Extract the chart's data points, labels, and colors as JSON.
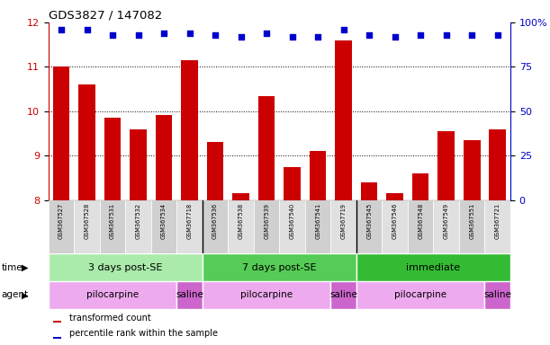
{
  "title": "GDS3827 / 147082",
  "samples": [
    "GSM367527",
    "GSM367528",
    "GSM367531",
    "GSM367532",
    "GSM367534",
    "GSM367718",
    "GSM367536",
    "GSM367538",
    "GSM367539",
    "GSM367540",
    "GSM367541",
    "GSM367719",
    "GSM367545",
    "GSM367546",
    "GSM367548",
    "GSM367549",
    "GSM367551",
    "GSM367721"
  ],
  "transformed_count": [
    11.0,
    10.6,
    9.85,
    9.6,
    9.92,
    11.15,
    9.3,
    8.15,
    10.35,
    8.75,
    9.1,
    11.6,
    8.4,
    8.15,
    8.6,
    9.55,
    9.35,
    9.6
  ],
  "percentile_rank": [
    96,
    96,
    93,
    93,
    94,
    94,
    93,
    92,
    94,
    92,
    92,
    96,
    93,
    92,
    93,
    93,
    93,
    93
  ],
  "ylim_left": [
    8,
    12
  ],
  "ylim_right": [
    0,
    100
  ],
  "yticks_left": [
    8,
    9,
    10,
    11,
    12
  ],
  "yticks_right": [
    0,
    25,
    50,
    75,
    100
  ],
  "bar_color": "#cc0000",
  "dot_color": "#0000cc",
  "time_groups": [
    {
      "label": "3 days post-SE",
      "start": 0,
      "end": 5,
      "color": "#aaeaaa"
    },
    {
      "label": "7 days post-SE",
      "start": 6,
      "end": 11,
      "color": "#55cc55"
    },
    {
      "label": "immediate",
      "start": 12,
      "end": 17,
      "color": "#33bb33"
    }
  ],
  "agent_groups": [
    {
      "label": "pilocarpine",
      "start": 0,
      "end": 4,
      "color": "#eeaaee"
    },
    {
      "label": "saline",
      "start": 5,
      "end": 5,
      "color": "#cc66cc"
    },
    {
      "label": "pilocarpine",
      "start": 6,
      "end": 10,
      "color": "#eeaaee"
    },
    {
      "label": "saline",
      "start": 11,
      "end": 11,
      "color": "#cc66cc"
    },
    {
      "label": "pilocarpine",
      "start": 12,
      "end": 16,
      "color": "#eeaaee"
    },
    {
      "label": "saline",
      "start": 17,
      "end": 17,
      "color": "#cc66cc"
    }
  ],
  "legend_items": [
    {
      "label": "transformed count",
      "color": "#cc0000"
    },
    {
      "label": "percentile rank within the sample",
      "color": "#0000cc"
    }
  ],
  "background_color": "#ffffff",
  "left_axis_color": "#cc0000",
  "right_axis_color": "#0000cc",
  "tick_label_bg": "#d8d8d8",
  "group_separator_color": "#000000"
}
